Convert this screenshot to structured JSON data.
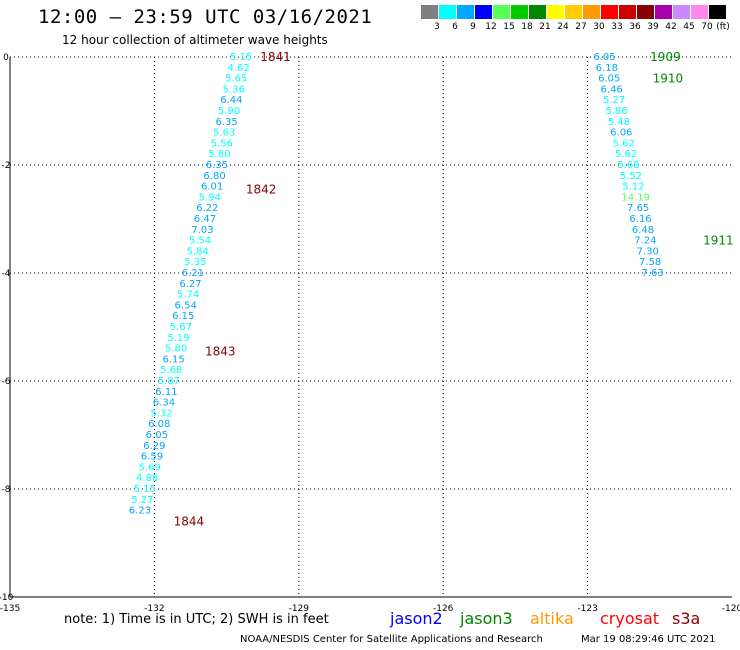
{
  "title": "12:00 – 23:59 UTC 03/16/2021",
  "subtitle": "12 hour collection of altimeter wave heights",
  "legend": {
    "unit_label": "(ft)",
    "bins": [
      {
        "label": "3",
        "color": "#7f7f7f"
      },
      {
        "label": "6",
        "color": "#00ffff"
      },
      {
        "label": "9",
        "color": "#00a6ff"
      },
      {
        "label": "12",
        "color": "#0000ff"
      },
      {
        "label": "15",
        "color": "#55ff55"
      },
      {
        "label": "18",
        "color": "#00cc00"
      },
      {
        "label": "21",
        "color": "#008800"
      },
      {
        "label": "24",
        "color": "#ffff00"
      },
      {
        "label": "27",
        "color": "#ffcc00"
      },
      {
        "label": "30",
        "color": "#ff9900"
      },
      {
        "label": "33",
        "color": "#ff0000"
      },
      {
        "label": "36",
        "color": "#cc0000"
      },
      {
        "label": "39",
        "color": "#880000"
      },
      {
        "label": "42",
        "color": "#aa00aa"
      },
      {
        "label": "45",
        "color": "#cc88ff"
      },
      {
        "label": "70",
        "color": "#ff88ee"
      },
      {
        "label": "",
        "color": "#000000"
      }
    ]
  },
  "map": {
    "lon_range": [
      -135,
      -120
    ],
    "lat_range": [
      -10,
      0
    ],
    "x_ticks": [
      {
        "value": -135,
        "label": "-135"
      },
      {
        "value": -132,
        "label": "-132"
      },
      {
        "value": -129,
        "label": "-129"
      },
      {
        "value": -126,
        "label": "-126"
      },
      {
        "value": -123,
        "label": "-123"
      },
      {
        "value": -120,
        "label": "-120"
      }
    ],
    "y_ticks": [
      {
        "value": 0,
        "label": "0"
      },
      {
        "value": -2,
        "label": "-2"
      },
      {
        "value": -4,
        "label": "-4"
      },
      {
        "value": -6,
        "label": "-6"
      },
      {
        "value": -8,
        "label": "-8"
      },
      {
        "value": -10,
        "label": "-10"
      }
    ]
  },
  "tracks": [
    {
      "mission": "jason3",
      "points": [
        {
          "lon": -130.2,
          "lat": 0.0,
          "v": "5.15"
        },
        {
          "lon": -130.25,
          "lat": -0.2,
          "v": "4.62"
        },
        {
          "lon": -130.3,
          "lat": -0.4,
          "v": "5.65"
        },
        {
          "lon": -130.35,
          "lat": -0.6,
          "v": "5.36"
        },
        {
          "lon": -130.4,
          "lat": -0.8,
          "v": "6.44"
        },
        {
          "lon": -130.45,
          "lat": -1.0,
          "v": "5.90"
        },
        {
          "lon": -130.5,
          "lat": -1.2,
          "v": "6.35"
        },
        {
          "lon": -130.55,
          "lat": -1.4,
          "v": "5.63"
        },
        {
          "lon": -130.6,
          "lat": -1.6,
          "v": "5.56"
        },
        {
          "lon": -130.65,
          "lat": -1.8,
          "v": "5.80"
        },
        {
          "lon": -130.7,
          "lat": -2.0,
          "v": "6.35"
        },
        {
          "lon": -130.75,
          "lat": -2.2,
          "v": "6.80"
        },
        {
          "lon": -130.8,
          "lat": -2.4,
          "v": "6.01"
        },
        {
          "lon": -130.85,
          "lat": -2.6,
          "v": "5.94"
        },
        {
          "lon": -130.9,
          "lat": -2.8,
          "v": "6.22"
        },
        {
          "lon": -130.95,
          "lat": -3.0,
          "v": "6.47"
        },
        {
          "lon": -131.0,
          "lat": -3.2,
          "v": "7.03"
        },
        {
          "lon": -131.05,
          "lat": -3.4,
          "v": "5.54"
        },
        {
          "lon": -131.1,
          "lat": -3.6,
          "v": "5.84"
        },
        {
          "lon": -131.15,
          "lat": -3.8,
          "v": "5.35"
        },
        {
          "lon": -131.2,
          "lat": -4.0,
          "v": "6.21"
        },
        {
          "lon": -131.25,
          "lat": -4.2,
          "v": "6.27"
        },
        {
          "lon": -131.3,
          "lat": -4.4,
          "v": "5.74"
        },
        {
          "lon": -131.35,
          "lat": -4.6,
          "v": "6.54"
        },
        {
          "lon": -131.4,
          "lat": -4.8,
          "v": "6.15"
        },
        {
          "lon": -131.45,
          "lat": -5.0,
          "v": "5.67"
        },
        {
          "lon": -131.5,
          "lat": -5.2,
          "v": "5.19"
        },
        {
          "lon": -131.55,
          "lat": -5.4,
          "v": "5.80"
        },
        {
          "lon": -131.6,
          "lat": -5.6,
          "v": "6.15"
        },
        {
          "lon": -131.65,
          "lat": -5.8,
          "v": "5.68"
        },
        {
          "lon": -131.7,
          "lat": -6.0,
          "v": "5.87"
        },
        {
          "lon": -131.75,
          "lat": -6.2,
          "v": "6.11"
        },
        {
          "lon": -131.8,
          "lat": -6.4,
          "v": "6.34"
        },
        {
          "lon": -131.85,
          "lat": -6.6,
          "v": "5.32"
        },
        {
          "lon": -131.9,
          "lat": -6.8,
          "v": "6.08"
        },
        {
          "lon": -131.95,
          "lat": -7.0,
          "v": "6.05"
        },
        {
          "lon": -132.0,
          "lat": -7.2,
          "v": "6.29"
        },
        {
          "lon": -132.05,
          "lat": -7.4,
          "v": "6.59"
        },
        {
          "lon": -132.1,
          "lat": -7.6,
          "v": "5.69"
        },
        {
          "lon": -132.15,
          "lat": -7.8,
          "v": "4.88"
        },
        {
          "lon": -132.2,
          "lat": -8.0,
          "v": "5.15"
        },
        {
          "lon": -132.25,
          "lat": -8.2,
          "v": "5.27"
        },
        {
          "lon": -132.3,
          "lat": -8.4,
          "v": "6.23"
        }
      ]
    },
    {
      "mission": "jason3",
      "points": [
        {
          "lon": -122.65,
          "lat": 0.0,
          "v": "6.05"
        },
        {
          "lon": -122.6,
          "lat": -0.2,
          "v": "6.18"
        },
        {
          "lon": -122.55,
          "lat": -0.4,
          "v": "6.05"
        },
        {
          "lon": -122.5,
          "lat": -0.6,
          "v": "6.46"
        },
        {
          "lon": -122.45,
          "lat": -0.8,
          "v": "5.27"
        },
        {
          "lon": -122.4,
          "lat": -1.0,
          "v": "5.86"
        },
        {
          "lon": -122.35,
          "lat": -1.2,
          "v": "5.48"
        },
        {
          "lon": -122.3,
          "lat": -1.4,
          "v": "6.06"
        },
        {
          "lon": -122.25,
          "lat": -1.6,
          "v": "5.62"
        },
        {
          "lon": -122.2,
          "lat": -1.8,
          "v": "5.62"
        },
        {
          "lon": -122.15,
          "lat": -2.0,
          "v": "5.68"
        },
        {
          "lon": -122.1,
          "lat": -2.2,
          "v": "5.52"
        },
        {
          "lon": -122.05,
          "lat": -2.4,
          "v": "5.12"
        },
        {
          "lon": -122.0,
          "lat": -2.6,
          "v": "14.19"
        },
        {
          "lon": -121.95,
          "lat": -2.8,
          "v": "7.65"
        },
        {
          "lon": -121.9,
          "lat": -3.0,
          "v": "6.16"
        },
        {
          "lon": -121.85,
          "lat": -3.2,
          "v": "6.48"
        },
        {
          "lon": -121.8,
          "lat": -3.4,
          "v": "7.24"
        },
        {
          "lon": -121.75,
          "lat": -3.6,
          "v": "7.30"
        },
        {
          "lon": -121.7,
          "lat": -3.8,
          "v": "7.58"
        },
        {
          "lon": -121.65,
          "lat": -4.0,
          "v": "7.63"
        }
      ]
    }
  ],
  "time_labels": [
    {
      "text": "1841",
      "lon": -129.8,
      "lat": 0.0,
      "color": "#880000"
    },
    {
      "text": "1842",
      "lon": -130.1,
      "lat": -2.45,
      "color": "#880000"
    },
    {
      "text": "1843",
      "lon": -130.95,
      "lat": -5.45,
      "color": "#880000"
    },
    {
      "text": "1844",
      "lon": -131.6,
      "lat": -8.6,
      "color": "#880000"
    },
    {
      "text": "1909",
      "lon": -121.7,
      "lat": 0.0,
      "color": "#008800"
    },
    {
      "text": "1910",
      "lon": -121.65,
      "lat": -0.4,
      "color": "#008800"
    },
    {
      "text": "1911",
      "lon": -120.6,
      "lat": -3.4,
      "color": "#008800"
    }
  ],
  "note": "note:  1) Time is in UTC;  2) SWH is in feet",
  "missions": [
    {
      "name": "jason2",
      "color": "#0000ff"
    },
    {
      "name": "jason3",
      "color": "#008800"
    },
    {
      "name": "altika",
      "color": "#ff9900"
    },
    {
      "name": "cryosat",
      "color": "#ff0000"
    },
    {
      "name": "s3a",
      "color": "#880000"
    }
  ],
  "credit": "NOAA/NESDIS Center for Satellite Applications and Research",
  "timestamp": "Mar 19 08:29:46 UTC 2021"
}
